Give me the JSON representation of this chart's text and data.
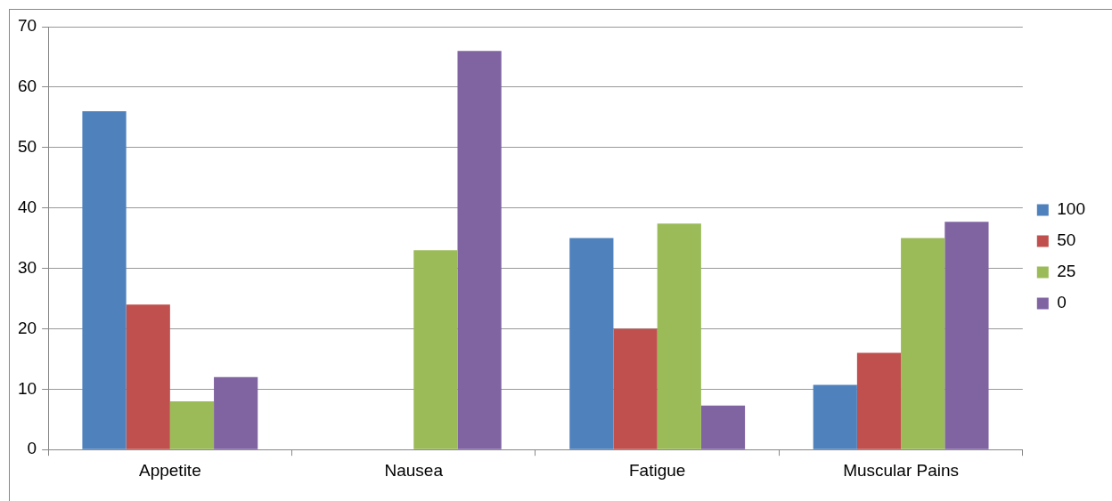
{
  "chart_data": {
    "type": "bar",
    "categories": [
      "Appetite",
      "Nausea",
      "Fatigue",
      "Muscular Pains"
    ],
    "series": [
      {
        "name": "100",
        "color": "#4f81bd",
        "values": [
          56,
          0,
          35,
          10.7
        ]
      },
      {
        "name": "50",
        "color": "#c0504d",
        "values": [
          24,
          0,
          20,
          16
        ]
      },
      {
        "name": "25",
        "color": "#9bbb59",
        "values": [
          8,
          33,
          37.4,
          35
        ]
      },
      {
        "name": "0",
        "color": "#8064a2",
        "values": [
          12,
          66,
          7.3,
          37.7
        ]
      }
    ],
    "ylim": [
      0,
      70
    ],
    "yticks": [
      0,
      10,
      20,
      30,
      40,
      50,
      60,
      70
    ],
    "grid": "y",
    "legend": "right"
  }
}
